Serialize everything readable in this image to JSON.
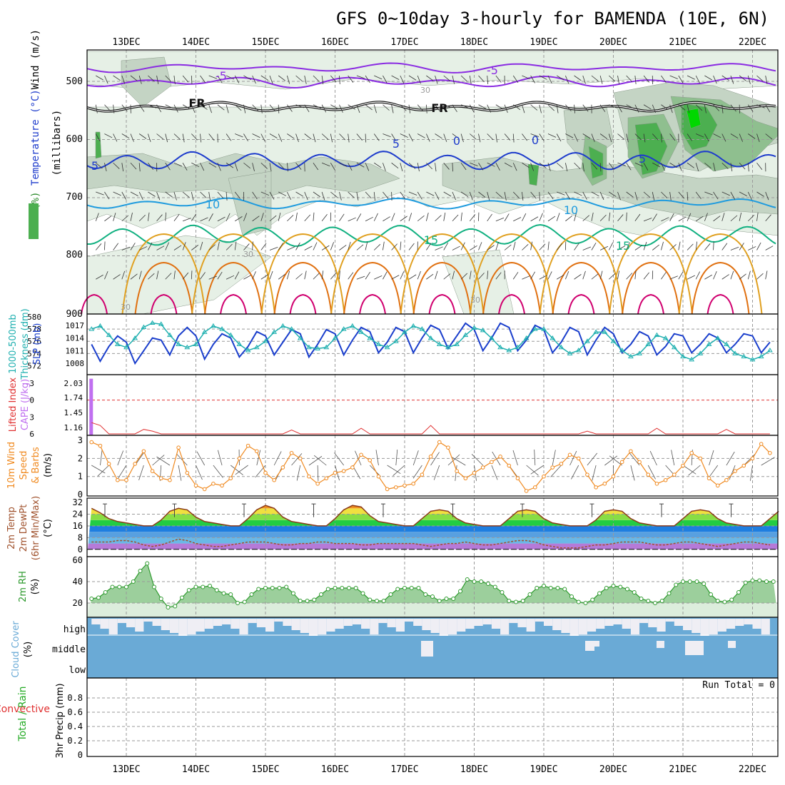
{
  "title": "GFS 0~10day 3-hourly for BAMENDA (10E, 6N)",
  "dates": [
    "13DEC",
    "14DEC",
    "15DEC",
    "16DEC",
    "17DEC",
    "18DEC",
    "19DEC",
    "20DEC",
    "21DEC",
    "22DEC"
  ],
  "colors": {
    "axis": "#000000",
    "grid": "#9a9a9a",
    "rh_light": "#e6f0e6",
    "rh_mid": "#c4d4c4",
    "rh_dark": "#8fbf8f",
    "rh_green": "#4caf50",
    "rh_bright": "#00d800",
    "temp_m5": "#8a2be2",
    "temp_fr": "#111111",
    "temp_5": "#1e3ccc",
    "temp_10": "#1f9bde",
    "temp_15": "#10b080",
    "temp_20": "#e0a020",
    "temp_25": "#e07010",
    "temp_30": "#d0006f",
    "slp": "#1a3ecc",
    "thick": "#20b0b0",
    "li": "#e03030",
    "cape": "#c06ff0",
    "wind": "#f08a20",
    "cloud": "#6aaad6",
    "cloud_clear": "#efeef4",
    "rh2m": "#2e9a2e"
  },
  "panels": {
    "upper": {
      "ylabel": "(millibars)",
      "legend": [
        "RH (%)",
        "Temperature (°C)",
        "Wind (m/s)"
      ],
      "y_ticks": [
        "500",
        "600",
        "700",
        "800",
        "900"
      ],
      "contour_labels": [
        {
          "text": "-5",
          "color": "temp_m5"
        },
        {
          "text": "-5",
          "color": "temp_m5"
        },
        {
          "text": "FR",
          "color": "temp_fr"
        },
        {
          "text": "FR",
          "color": "temp_fr"
        },
        {
          "text": "5",
          "color": "temp_5"
        },
        {
          "text": "5",
          "color": "temp_5"
        },
        {
          "text": "5",
          "color": "temp_5"
        },
        {
          "text": "0",
          "color": "temp_5"
        },
        {
          "text": "0",
          "color": "temp_5"
        },
        {
          "text": "10",
          "color": "temp_10"
        },
        {
          "text": "10",
          "color": "temp_10"
        },
        {
          "text": "15",
          "color": "temp_15"
        },
        {
          "text": "15",
          "color": "temp_15"
        },
        {
          "text": "30",
          "color": "grid"
        },
        {
          "text": "30",
          "color": "grid"
        },
        {
          "text": "30",
          "color": "grid"
        },
        {
          "text": "30",
          "color": "grid"
        }
      ]
    },
    "slp": {
      "labels": [
        "1000-500mb",
        "Thickness (dm)",
        "SLP (mb)"
      ],
      "thick_ticks": [
        "580",
        "578",
        "576",
        "574",
        "572"
      ],
      "slp_ticks": [
        "1017",
        "1014",
        "1011",
        "1008"
      ],
      "slp_ylim": [
        1006,
        1019
      ],
      "thick_ylim": [
        571,
        580
      ]
    },
    "li": {
      "labels": [
        "Lifted Index",
        "CAPE (J/kg)"
      ],
      "li_ticks": [
        "-3",
        "0",
        "3",
        "6"
      ],
      "cape_ticks": [
        "2.03",
        "1.74",
        "1.45",
        "1.16"
      ],
      "cape_bar_value": 2.03
    },
    "wind": {
      "labels": [
        "10m Wind",
        "Speed",
        "& Barbs",
        "(m/s)"
      ],
      "ticks": [
        "3",
        "2",
        "1",
        "0"
      ],
      "ylim": [
        0,
        3.2
      ]
    },
    "temp": {
      "labels": [
        "2m Temp",
        "2m DewPt",
        "(6hr Min/Max)",
        "(°C)"
      ],
      "ticks": [
        "32",
        "24",
        "16",
        "8",
        "0"
      ],
      "ylim": [
        -4,
        34
      ]
    },
    "rh2m": {
      "labels": [
        "2m RH",
        "(%)"
      ],
      "ticks": [
        "60",
        "40",
        "20"
      ],
      "ylim": [
        8,
        62
      ]
    },
    "cloud": {
      "labels": [
        "Cloud Cover",
        "(%)"
      ],
      "levels": [
        "high",
        "middle",
        "low"
      ]
    },
    "precip": {
      "labels": [
        "Total / Rain",
        "Convective",
        "3hr Precip (mm)"
      ],
      "ticks": [
        "0.8",
        "0.6",
        "0.4",
        "0.2",
        "0"
      ],
      "run_total": "Run Total = 0"
    }
  },
  "chart_data": [
    {
      "type": "line",
      "title": "SLP (mb)",
      "name": "slp",
      "step_hours": 3,
      "x_start": "12DEC 12Z",
      "values": [
        1012.5,
        1008.5,
        1012.0,
        1014.5,
        1013.0,
        1008.0,
        1011.0,
        1014.0,
        1013.5,
        1010.0,
        1014.5,
        1016.5,
        1014.5,
        1009.0,
        1012.5,
        1015.0,
        1014.0,
        1009.5,
        1012.0,
        1015.5,
        1014.5,
        1010.0,
        1013.0,
        1016.0,
        1015.0,
        1009.5,
        1012.5,
        1016.0,
        1015.0,
        1010.0,
        1013.5,
        1016.5,
        1015.5,
        1010.5,
        1013.0,
        1016.5,
        1015.5,
        1010.5,
        1014.0,
        1017.0,
        1016.0,
        1011.5,
        1014.5,
        1017.5,
        1016.0,
        1011.0,
        1014.0,
        1017.5,
        1016.5,
        1011.0,
        1013.5,
        1017.0,
        1016.0,
        1010.5,
        1013.0,
        1016.5,
        1015.5,
        1010.0,
        1013.5,
        1016.5,
        1015.0,
        1010.5,
        1012.5,
        1015.5,
        1014.5,
        1010.0,
        1012.0,
        1015.0,
        1014.5,
        1010.5,
        1012.5,
        1015.0,
        1014.0,
        1010.5,
        1012.5,
        1015.0,
        1014.5,
        1010.5,
        1013.0,
        1015.5
      ]
    },
    {
      "type": "line",
      "title": "1000-500mb Thickness (dm)",
      "name": "thickness",
      "step_hours": 3,
      "values": [
        578.0,
        578.5,
        577.0,
        575.5,
        575.0,
        576.5,
        578.3,
        579.0,
        578.8,
        577.0,
        575.5,
        575.0,
        575.5,
        577.5,
        578.5,
        578.0,
        577.0,
        575.5,
        574.5,
        575.0,
        576.0,
        577.5,
        578.5,
        578.0,
        576.5,
        575.0,
        574.8,
        575.0,
        576.5,
        578.0,
        578.5,
        577.5,
        576.5,
        575.5,
        575.0,
        576.0,
        577.5,
        578.5,
        578.0,
        576.5,
        575.5,
        575.0,
        575.5,
        577.0,
        578.2,
        577.8,
        576.5,
        575.0,
        574.5,
        575.0,
        576.5,
        578.0,
        578.0,
        576.5,
        575.0,
        574.0,
        574.5,
        576.0,
        577.5,
        577.5,
        576.0,
        574.5,
        573.5,
        574.0,
        575.5,
        577.0,
        576.5,
        575.0,
        573.5,
        573.0,
        574.0,
        575.5,
        576.5,
        575.5,
        574.0,
        573.5,
        573.0,
        573.5,
        574.5,
        575.5
      ]
    },
    {
      "type": "line",
      "title": "Lifted Index",
      "name": "lifted_index",
      "values": [
        4.0,
        4.5,
        6,
        6,
        6,
        6,
        5.2,
        5.5,
        6,
        6,
        6,
        6,
        6,
        6,
        6,
        6,
        6,
        6,
        6,
        6,
        6,
        6,
        6,
        5.3,
        6,
        6,
        6,
        6,
        6,
        6,
        6,
        5.0,
        6,
        6,
        6,
        6,
        6,
        6,
        6,
        4.5,
        6,
        6,
        6,
        6,
        6,
        6,
        6,
        6,
        6,
        6,
        6,
        6,
        6,
        6,
        6,
        6,
        6,
        5.5,
        6,
        6,
        6,
        6,
        6,
        6,
        6,
        5.0,
        6,
        6,
        6,
        6,
        6,
        6,
        6,
        5.2,
        6,
        6,
        6,
        6,
        6,
        6
      ]
    },
    {
      "type": "line",
      "title": "10m Wind Speed (m/s)",
      "name": "wind_speed",
      "values": [
        2.9,
        2.7,
        1.7,
        0.8,
        0.8,
        1.7,
        2.4,
        1.3,
        0.9,
        0.8,
        2.6,
        1.2,
        0.5,
        0.3,
        0.6,
        0.5,
        0.9,
        2.0,
        2.7,
        2.4,
        1.2,
        0.8,
        1.5,
        2.3,
        2.0,
        1.0,
        0.6,
        0.9,
        1.2,
        1.3,
        1.5,
        2.2,
        1.9,
        1.0,
        0.3,
        0.4,
        0.5,
        0.6,
        1.1,
        2.1,
        2.9,
        2.6,
        1.3,
        0.9,
        1.2,
        1.5,
        1.8,
        2.1,
        1.6,
        0.9,
        0.2,
        0.4,
        1.0,
        1.5,
        1.7,
        2.2,
        2.0,
        1.1,
        0.4,
        0.6,
        1.0,
        1.8,
        2.4,
        1.8,
        1.1,
        0.6,
        0.8,
        1.1,
        1.6,
        2.3,
        2.0,
        0.9,
        0.5,
        0.8,
        1.3,
        1.6,
        2.0,
        2.8,
        2.3,
        1.4,
        0.7,
        0.3,
        0.9,
        1.2,
        1.1
      ]
    },
    {
      "type": "area",
      "title": "2m Temp (°C)",
      "name": "temp_2m",
      "values": [
        28,
        25,
        21,
        19,
        18,
        17,
        16,
        16,
        20,
        26,
        28,
        27,
        22,
        19,
        18,
        17,
        16,
        16,
        21,
        27,
        30,
        28,
        22,
        19,
        18,
        17,
        16,
        16,
        21,
        27,
        30,
        29,
        23,
        19,
        18,
        17,
        16,
        16,
        21,
        26,
        27,
        26,
        21,
        18,
        17,
        16,
        16,
        16,
        21,
        26,
        27,
        26,
        21,
        18,
        17,
        16,
        16,
        16,
        20,
        26,
        27,
        26,
        21,
        18,
        17,
        16,
        16,
        16,
        21,
        26,
        27,
        26,
        21,
        18,
        17,
        16,
        16,
        16,
        21,
        26,
        27,
        26,
        20,
        17,
        16,
        16
      ]
    },
    {
      "type": "line",
      "title": "2m DewPt (°C)",
      "name": "dewpt_2m",
      "values": [
        5,
        5,
        5,
        6,
        6,
        5,
        3,
        2,
        3,
        5,
        7,
        6,
        4,
        3,
        2,
        2,
        3,
        4,
        5,
        5,
        5,
        4,
        3,
        3,
        4,
        4,
        5,
        5,
        4,
        4,
        4,
        3,
        3,
        4,
        4,
        4,
        4,
        4,
        3,
        2,
        3,
        4,
        4,
        5,
        4,
        3,
        3,
        4,
        5,
        6,
        6,
        5,
        3,
        2,
        1,
        1,
        1,
        2,
        3,
        3,
        4,
        5,
        5,
        5,
        4,
        3,
        3,
        4,
        5,
        5,
        4,
        3,
        2,
        3,
        4,
        5,
        5,
        4,
        3,
        3,
        3,
        4,
        4,
        4,
        4,
        4
      ]
    },
    {
      "type": "area",
      "title": "2m RH (%)",
      "name": "rh_2m",
      "values": [
        24,
        25,
        30,
        35,
        35,
        35,
        40,
        50,
        57,
        35,
        24,
        16,
        17,
        25,
        32,
        35,
        35,
        36,
        32,
        29,
        28,
        20,
        21,
        28,
        33,
        34,
        34,
        34,
        35,
        29,
        22,
        22,
        23,
        28,
        33,
        34,
        34,
        34,
        34,
        29,
        23,
        22,
        22,
        28,
        33,
        34,
        34,
        34,
        28,
        26,
        22,
        24,
        24,
        31,
        42,
        40,
        40,
        38,
        35,
        30,
        22,
        21,
        22,
        28,
        34,
        36,
        34,
        34,
        33,
        26,
        21,
        20,
        23,
        29,
        34,
        36,
        35,
        33,
        30,
        24,
        22,
        20,
        22,
        29,
        37,
        40,
        40,
        40,
        38,
        28,
        22,
        21,
        23,
        30,
        39,
        41,
        41,
        40,
        40
      ]
    },
    {
      "type": "bar",
      "title": "3hr Precip (mm)",
      "name": "precip",
      "values": [
        0,
        0,
        0,
        0,
        0,
        0,
        0,
        0,
        0,
        0,
        0,
        0,
        0,
        0,
        0,
        0,
        0,
        0,
        0,
        0,
        0,
        0,
        0,
        0,
        0,
        0,
        0,
        0,
        0,
        0,
        0,
        0,
        0,
        0,
        0,
        0,
        0,
        0,
        0,
        0,
        0,
        0,
        0,
        0,
        0,
        0,
        0,
        0,
        0,
        0,
        0,
        0,
        0,
        0,
        0,
        0,
        0,
        0,
        0,
        0,
        0,
        0,
        0,
        0,
        0,
        0,
        0,
        0,
        0,
        0,
        0,
        0,
        0,
        0,
        0,
        0,
        0,
        0,
        0,
        0
      ],
      "ylim": [
        0,
        1
      ]
    }
  ]
}
